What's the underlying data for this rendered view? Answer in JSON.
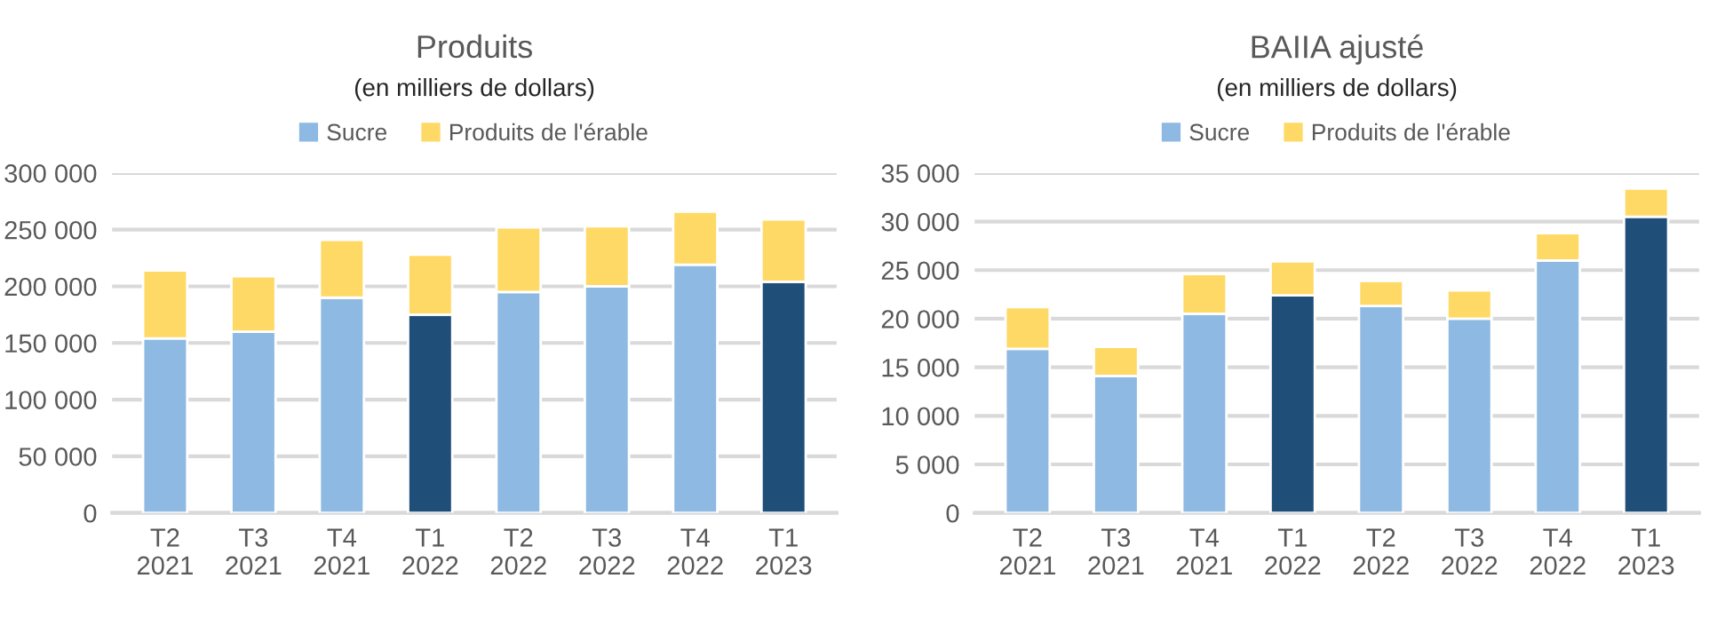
{
  "chart_data": [
    {
      "type": "bar",
      "title": "Produits",
      "subtitle": "(en milliers de dollars)",
      "stacked": true,
      "legend": "top",
      "grid": "y",
      "categories": [
        "T2\n2021",
        "T3\n2021",
        "T4\n2021",
        "T1\n2022",
        "T2\n2022",
        "T3\n2022",
        "T4\n2022",
        "T1\n2023"
      ],
      "series": [
        {
          "name": "Sucre",
          "color": "#8db9e2",
          "colors": [
            "#8db9e2",
            "#8db9e2",
            "#8db9e2",
            "#1f4e79",
            "#8db9e2",
            "#8db9e2",
            "#8db9e2",
            "#1f4e79"
          ],
          "values": [
            154000,
            160000,
            190000,
            175000,
            195000,
            200000,
            219000,
            204000
          ]
        },
        {
          "name": "Produits de l'érable",
          "color": "#ffd966",
          "values": [
            60000,
            49000,
            51000,
            53000,
            57000,
            53000,
            47000,
            55000
          ]
        }
      ],
      "ylim": [
        0,
        300000
      ],
      "yticks": [
        0,
        {
          "value": 50000,
          "label": "50 000"
        },
        {
          "value": 100000,
          "label": "100 000"
        },
        {
          "value": 150000,
          "label": "150 000"
        },
        {
          "value": 200000,
          "label": "200 000"
        },
        {
          "value": 250000,
          "label": "250 000"
        },
        {
          "value": 300000,
          "label": "300 000"
        }
      ]
    },
    {
      "type": "bar",
      "title": "BAIIA ajusté",
      "subtitle": "(en milliers de dollars)",
      "stacked": true,
      "legend": "top",
      "grid": "y",
      "categories": [
        "T2\n2021",
        "T3\n2021",
        "T4\n2021",
        "T1\n2022",
        "T2\n2022",
        "T3\n2022",
        "T4\n2022",
        "T1\n2023"
      ],
      "series": [
        {
          "name": "Sucre",
          "color": "#8db9e2",
          "colors": [
            "#8db9e2",
            "#8db9e2",
            "#8db9e2",
            "#1f4e79",
            "#8db9e2",
            "#8db9e2",
            "#8db9e2",
            "#1f4e79"
          ],
          "values": [
            16900,
            14100,
            20500,
            22400,
            21300,
            20000,
            26000,
            30500
          ]
        },
        {
          "name": "Produits de l'érable",
          "color": "#ffd966",
          "values": [
            4300,
            3000,
            4100,
            3500,
            2600,
            2900,
            2800,
            2900
          ]
        }
      ],
      "ylim": [
        0,
        35000
      ],
      "yticks": [
        0,
        {
          "value": 5000,
          "label": "5 000"
        },
        {
          "value": 10000,
          "label": "10 000"
        },
        {
          "value": 15000,
          "label": "15 000"
        },
        {
          "value": 20000,
          "label": "20 000"
        },
        {
          "value": 25000,
          "label": "25 000"
        },
        {
          "value": 30000,
          "label": "30 000"
        },
        {
          "value": 35000,
          "label": "35 000"
        }
      ]
    }
  ]
}
